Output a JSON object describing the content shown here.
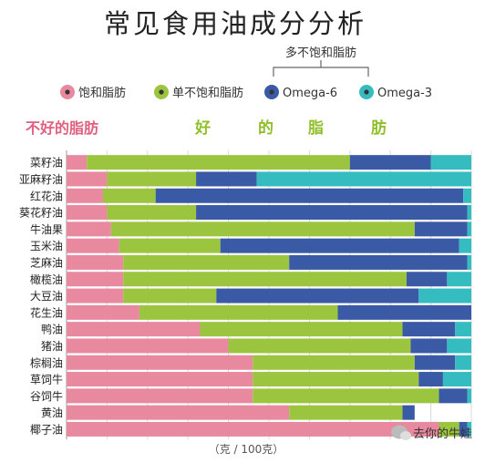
{
  "chart_data": {
    "type": "bar",
    "orientation": "horizontal",
    "stacked": true,
    "title": "常见食用油成分分析",
    "bracket_label": "多不饱和脂肪",
    "bad_label": "不好的脂肪",
    "good_label": "好的脂肪",
    "xlabel": "（克 / 100克）",
    "xlim": [
      0,
      100
    ],
    "grid": true,
    "legend_position": "top",
    "categories": [
      "菜籽油",
      "亚麻籽油",
      "红花油",
      "葵花籽油",
      "牛油果",
      "玉米油",
      "芝麻油",
      "橄榄油",
      "大豆油",
      "花生油",
      "鸭油",
      "猪油",
      "棕榈油",
      "草饲牛",
      "谷饲牛",
      "黄油",
      "椰子油"
    ],
    "series": [
      {
        "name": "饱和脂肪",
        "color": "#e8899f",
        "values": [
          5,
          10,
          9,
          10,
          11,
          13,
          14,
          14,
          14,
          18,
          33,
          40,
          46,
          46,
          46,
          55,
          92
        ]
      },
      {
        "name": "单不饱和脂肪",
        "color": "#9cc53f",
        "values": [
          65,
          22,
          13,
          22,
          75,
          25,
          41,
          70,
          23,
          49,
          50,
          45,
          40,
          41,
          46,
          28,
          5
        ]
      },
      {
        "name": "Omega-6",
        "color": "#3b5aa6",
        "values": [
          20,
          15,
          76,
          67,
          13,
          59,
          44,
          10,
          50,
          33,
          13,
          9,
          10,
          6,
          7,
          3,
          2
        ]
      },
      {
        "name": "Omega-3",
        "color": "#35bcc0",
        "values": [
          10,
          53,
          2,
          1,
          1,
          3,
          1,
          6,
          13,
          0,
          4,
          6,
          4,
          7,
          1,
          0,
          1
        ]
      }
    ],
    "watermark": "去你的牛娃"
  }
}
